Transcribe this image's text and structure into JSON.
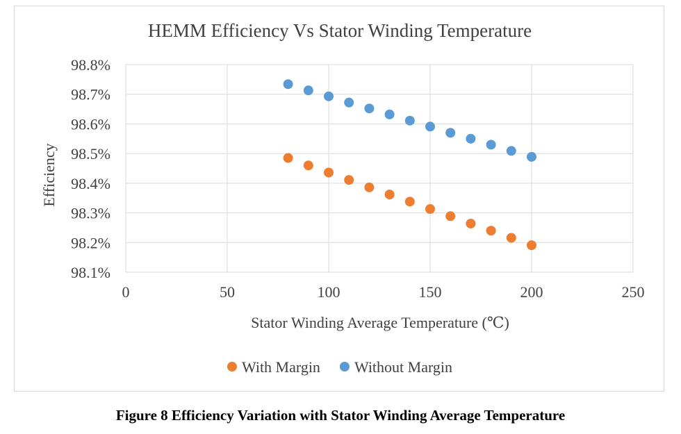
{
  "chart_data": {
    "type": "scatter",
    "title": "HEMM Efficiency Vs Stator Winding Temperature",
    "xlabel": "Stator Winding Average Temperature (℃)",
    "ylabel": "Efficiency",
    "xlim": [
      0,
      250
    ],
    "ylim": [
      98.1,
      98.8
    ],
    "x_ticks": [
      0,
      50,
      100,
      150,
      200,
      250
    ],
    "x_tick_labels": [
      "0",
      "50",
      "100",
      "150",
      "200",
      "250"
    ],
    "y_ticks": [
      98.1,
      98.2,
      98.3,
      98.4,
      98.5,
      98.6,
      98.7,
      98.8
    ],
    "y_tick_labels": [
      "98.1%",
      "98.2%",
      "98.3%",
      "98.4%",
      "98.5%",
      "98.6%",
      "98.7%",
      "98.8%"
    ],
    "grid": true,
    "legend": "bottom",
    "series": [
      {
        "name": "With Margin",
        "color": "#ed7d31",
        "x": [
          80,
          90,
          100,
          110,
          120,
          130,
          140,
          150,
          160,
          170,
          180,
          190,
          200
        ],
        "y": [
          98.485,
          98.46,
          98.436,
          98.411,
          98.386,
          98.362,
          98.338,
          98.313,
          98.289,
          98.264,
          98.24,
          98.216,
          98.191
        ]
      },
      {
        "name": "Without Margin",
        "color": "#5b9bd5",
        "x": [
          80,
          90,
          100,
          110,
          120,
          130,
          140,
          150,
          160,
          170,
          180,
          190,
          200
        ],
        "y": [
          98.734,
          98.713,
          98.693,
          98.672,
          98.652,
          98.632,
          98.611,
          98.591,
          98.57,
          98.55,
          98.53,
          98.509,
          98.489
        ]
      }
    ]
  },
  "caption": "Figure 8 Efficiency Variation with Stator Winding Average Temperature"
}
